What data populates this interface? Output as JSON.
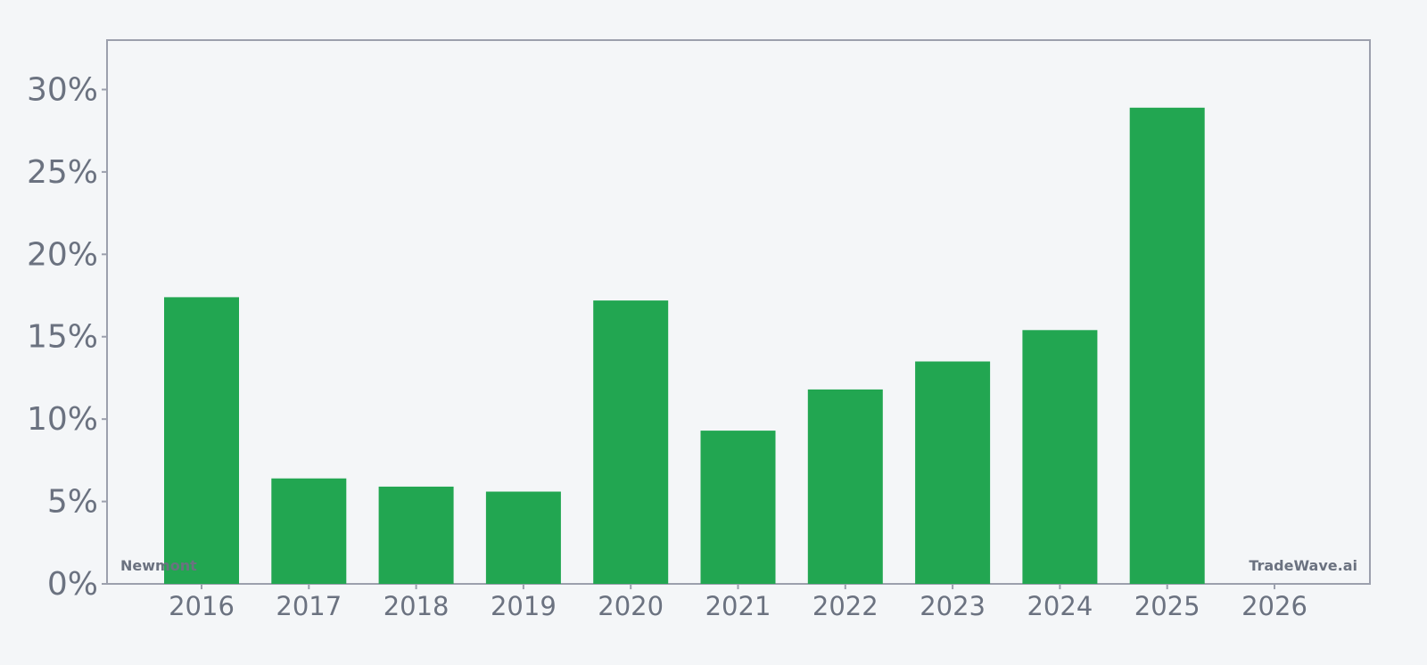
{
  "chart_data": {
    "type": "bar",
    "categories": [
      "2016",
      "2017",
      "2018",
      "2019",
      "2020",
      "2021",
      "2022",
      "2023",
      "2024",
      "2025",
      "2026"
    ],
    "values": [
      17.4,
      6.4,
      5.9,
      5.6,
      17.2,
      9.3,
      11.8,
      13.5,
      15.4,
      28.9,
      null
    ],
    "title": "",
    "xlabel": "",
    "ylabel": "",
    "ylim": [
      0,
      33
    ],
    "yticks": [
      0,
      5,
      10,
      15,
      20,
      25,
      30
    ],
    "ytick_labels": [
      "0%",
      "5%",
      "10%",
      "15%",
      "20%",
      "25%",
      "30%"
    ],
    "grid": false,
    "bar_color": "#22a651",
    "axis_color": "#9ca0ad",
    "label_color": "#6b7280"
  },
  "watermarks": {
    "left": "Newmont",
    "right": "TradeWave.ai"
  }
}
